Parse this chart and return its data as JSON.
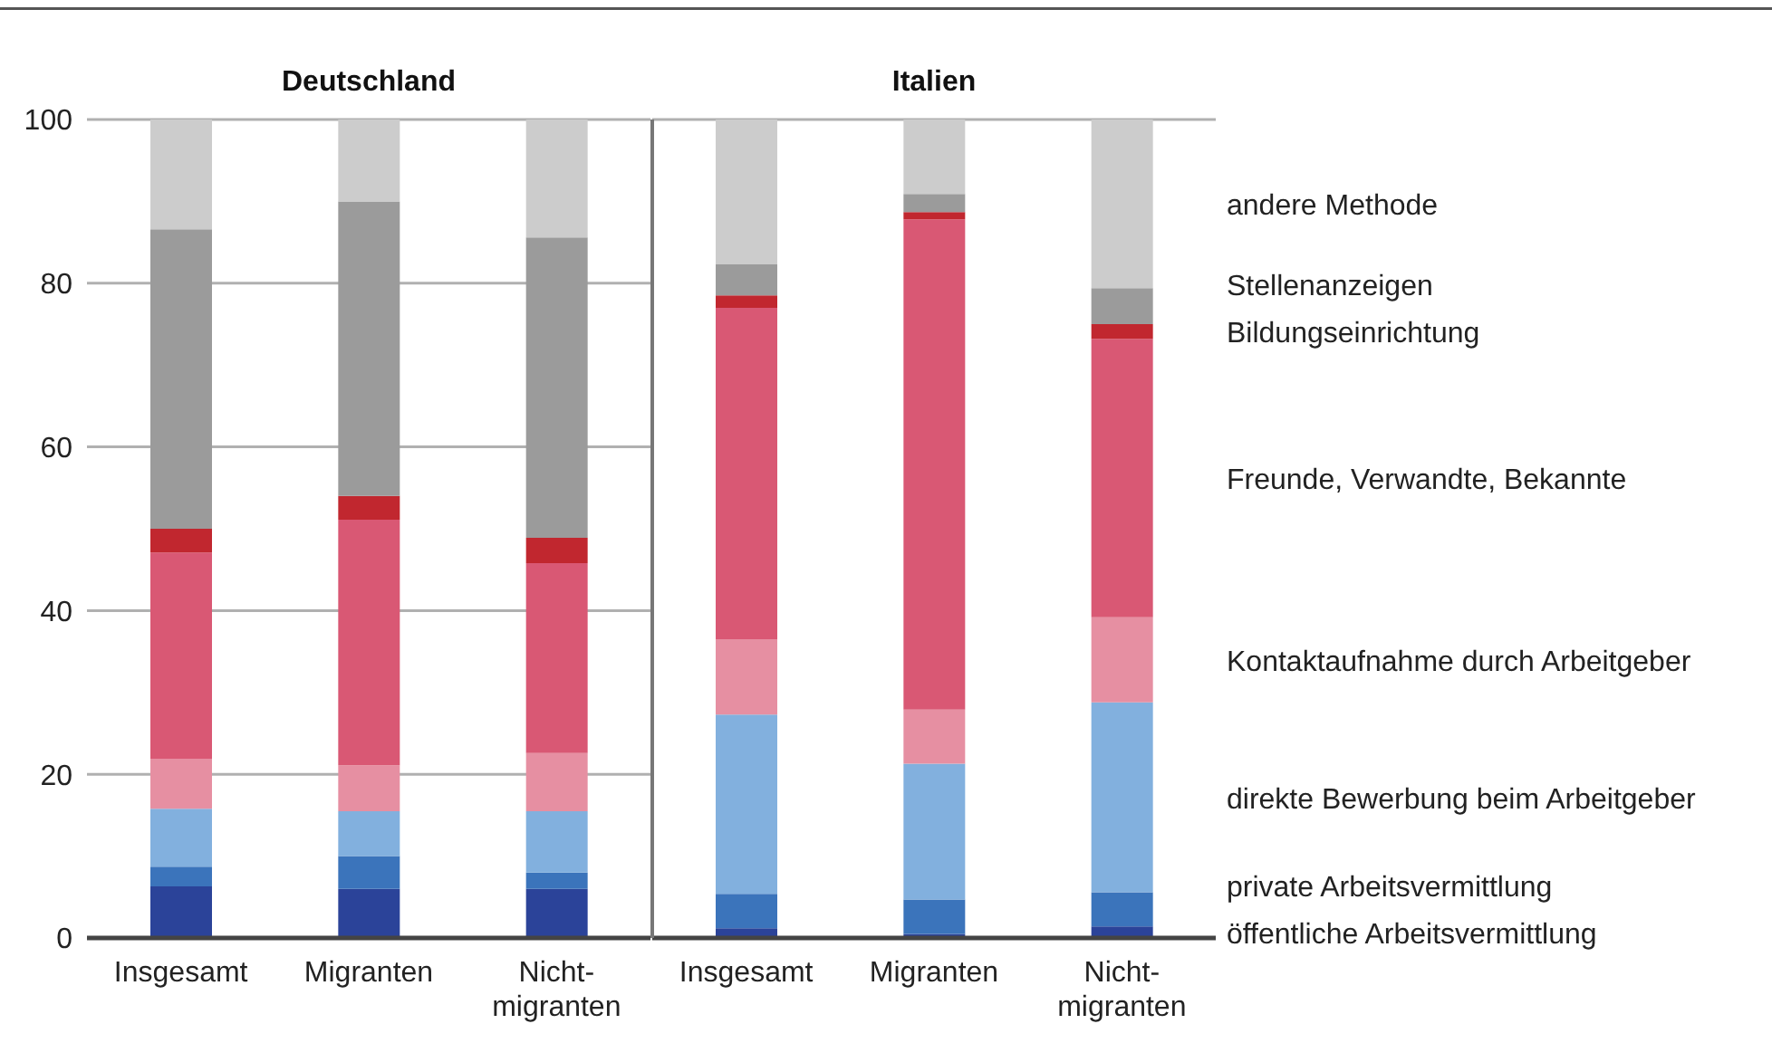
{
  "chart_data": [
    {
      "type": "bar",
      "stacked": true,
      "title": "Deutschland",
      "categories": [
        "Insgesamt",
        "Migranten",
        "Nicht-migranten"
      ],
      "ylim": [
        0,
        100
      ],
      "yticks": [
        0,
        20,
        40,
        60,
        80,
        100
      ],
      "grid": "y",
      "legend": false,
      "series": [
        {
          "color": "#2b4399",
          "values": [
            6.3,
            6.0,
            6.0
          ]
        },
        {
          "color": "#3b74bb",
          "values": [
            2.4,
            4.0,
            2.0
          ]
        },
        {
          "color": "#82b0de",
          "values": [
            7.1,
            5.5,
            7.5
          ]
        },
        {
          "color": "#e68fa2",
          "values": [
            6.1,
            5.6,
            7.1
          ]
        },
        {
          "color": "#d95874",
          "values": [
            25.2,
            30.0,
            23.2
          ]
        },
        {
          "color": "#c1272f",
          "values": [
            2.9,
            2.9,
            3.1
          ]
        },
        {
          "color": "#9b9b9b",
          "values": [
            36.6,
            36.0,
            36.7
          ]
        },
        {
          "color": "#cccccc",
          "values": [
            13.4,
            10.0,
            14.4
          ]
        }
      ]
    },
    {
      "type": "bar",
      "stacked": true,
      "title": "Italien",
      "categories": [
        "Insgesamt",
        "Migranten",
        "Nicht-migranten"
      ],
      "ylim": [
        0,
        100
      ],
      "yticks": [
        0,
        20,
        40,
        60,
        80,
        100
      ],
      "grid": "y",
      "legend": false,
      "tick_labels": "x",
      "series": [
        {
          "name": "öffentliche Arbeitsvermittlung",
          "color": "#2b4399",
          "values": [
            1.2,
            0.5,
            1.4
          ]
        },
        {
          "name": "private Arbeitsvermittlung",
          "color": "#3b74bb",
          "values": [
            4.2,
            4.2,
            4.2
          ]
        },
        {
          "name": "direkte Bewerbung beim Arbeitgeber",
          "color": "#82b0de",
          "values": [
            21.9,
            16.6,
            23.2
          ]
        },
        {
          "name": "Kontaktaufnahme durch Arbeitgeber",
          "color": "#e68fa2",
          "values": [
            9.2,
            6.6,
            10.4
          ]
        },
        {
          "name": "Freunde, Verwandte, Bekannte",
          "color": "#d95874",
          "values": [
            40.5,
            59.9,
            34.0
          ]
        },
        {
          "name": "Bildungseinrichtung",
          "color": "#c1272f",
          "values": [
            1.5,
            0.9,
            1.8
          ]
        },
        {
          "name": "Stellenanzeigen",
          "color": "#9b9b9b",
          "values": [
            3.8,
            2.2,
            4.4
          ]
        },
        {
          "name": "andere Methode",
          "color": "#cccccc",
          "values": [
            17.7,
            9.1,
            20.6
          ]
        }
      ]
    }
  ]
}
